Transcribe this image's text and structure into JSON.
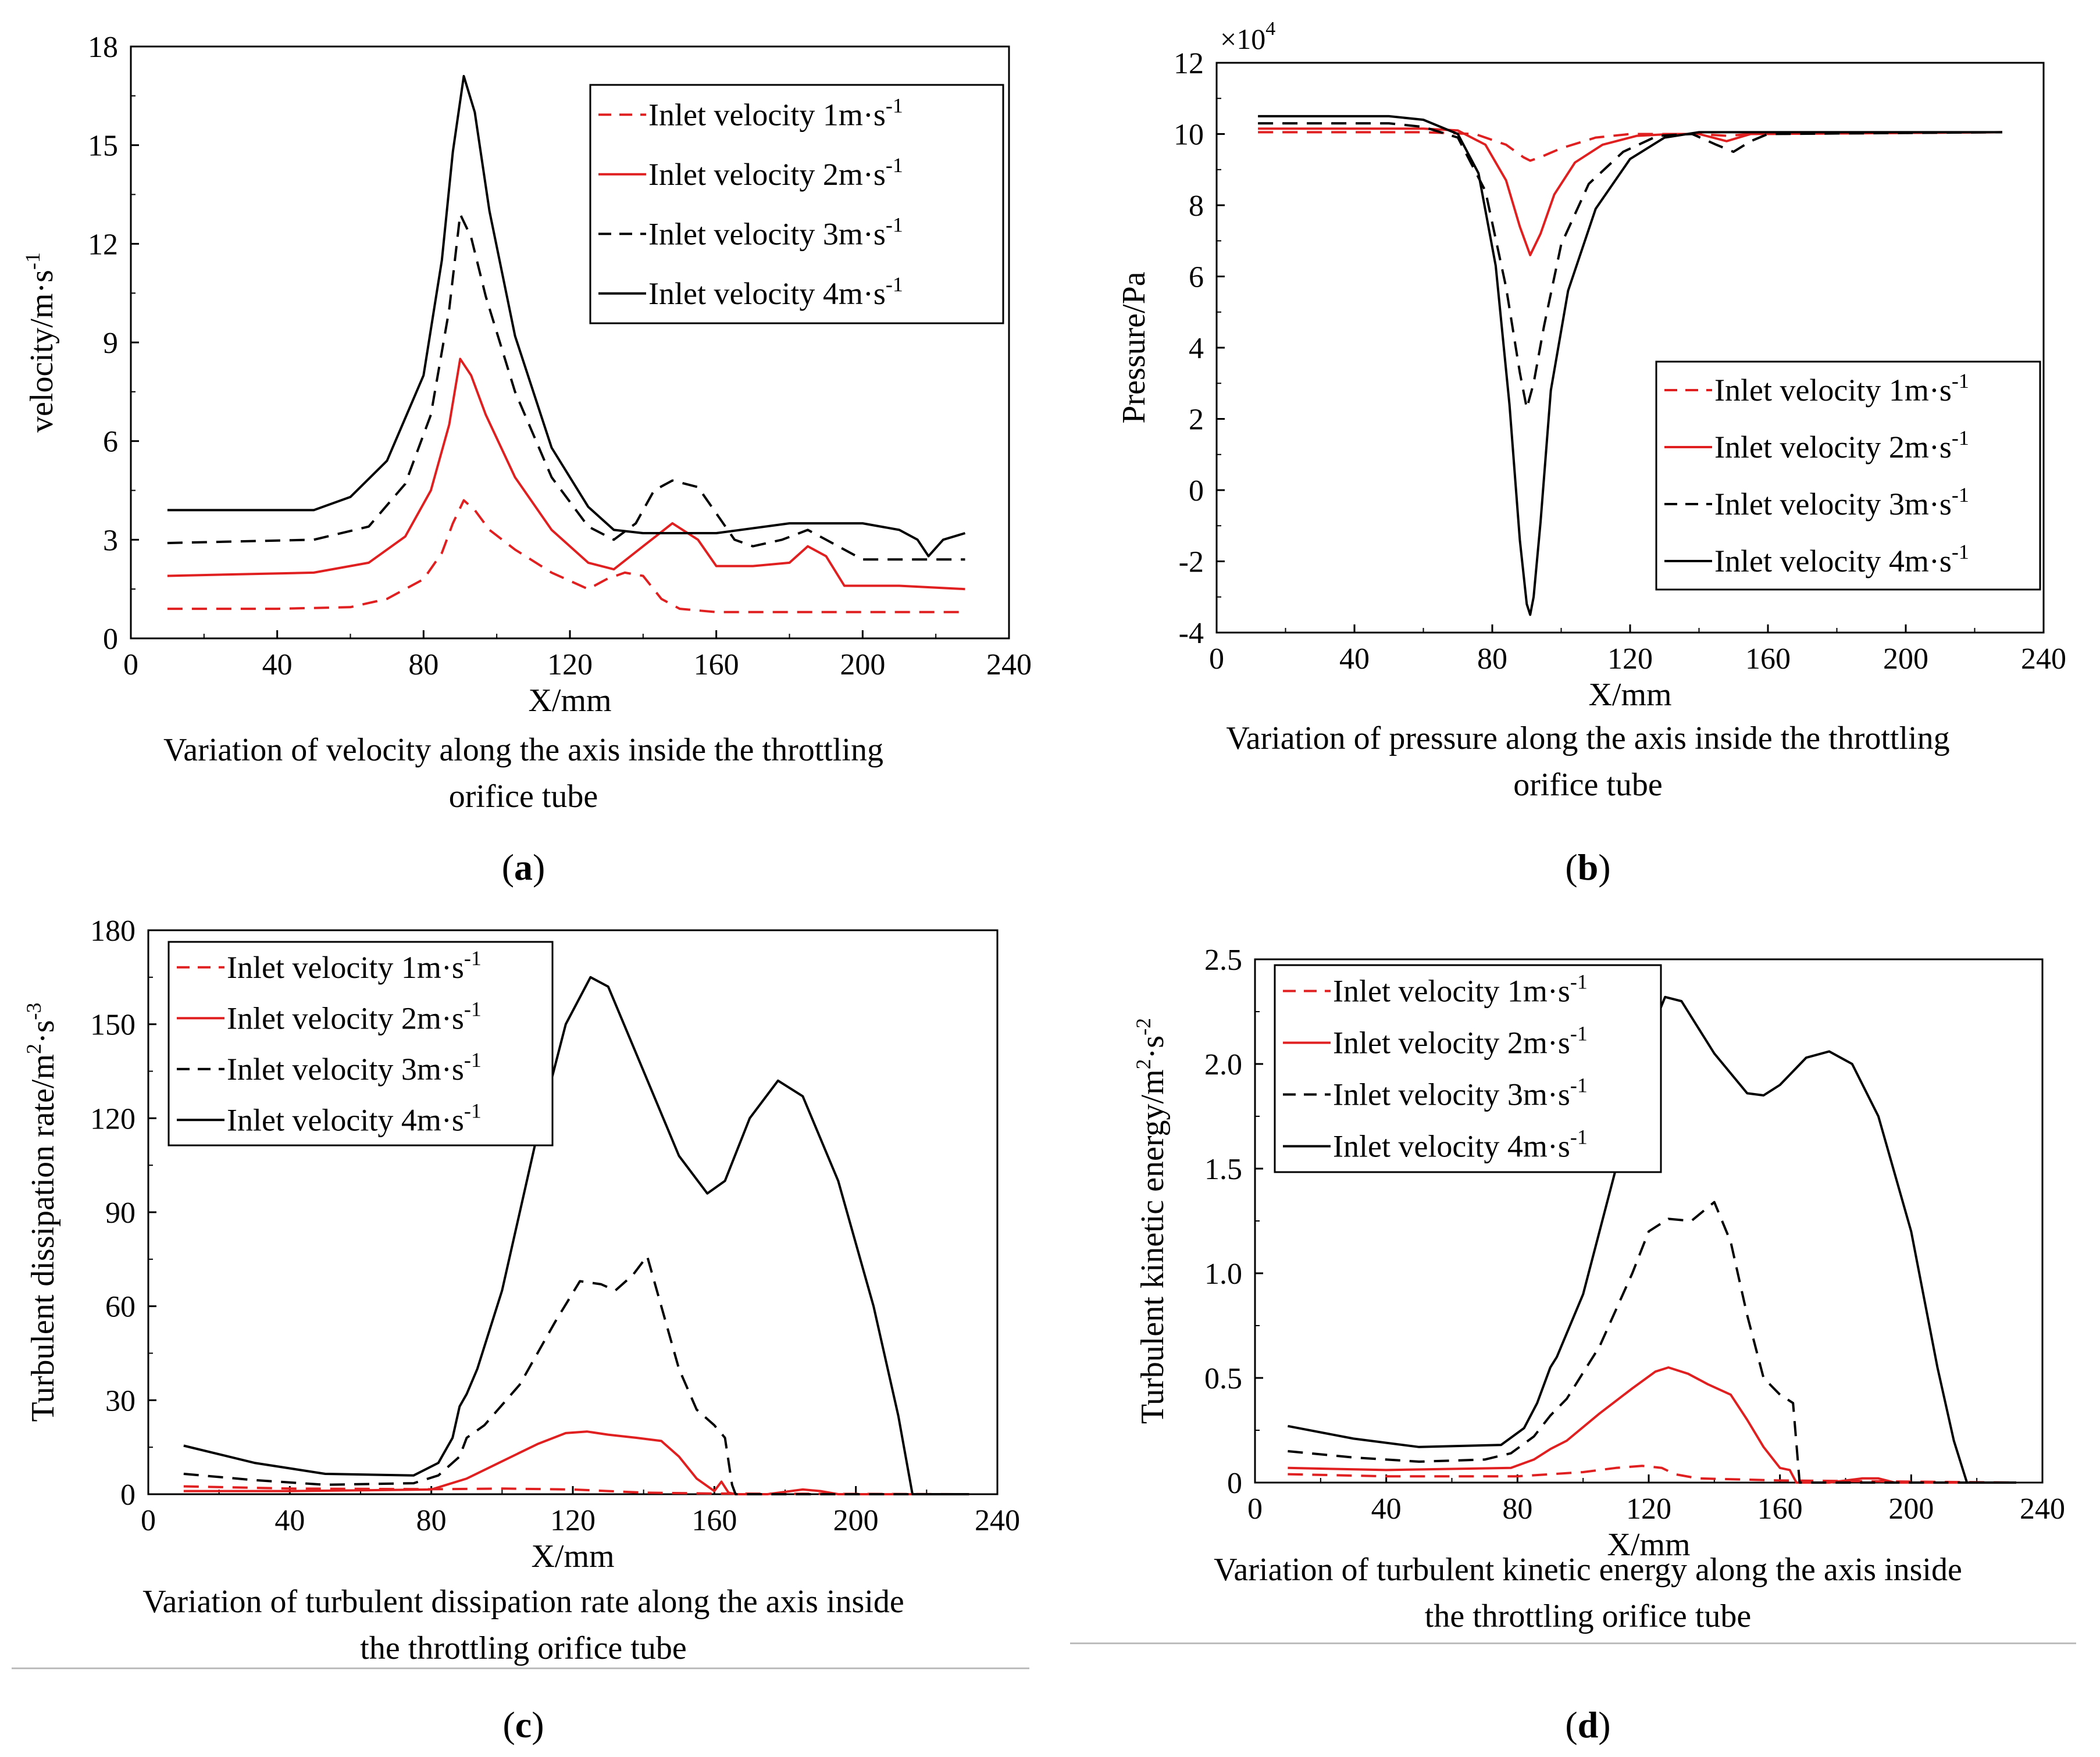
{
  "panels": [
    {
      "id": "a",
      "label": "a",
      "caption_line1": "Variation of velocity along the axis inside the throttling",
      "caption_line2": "orifice tube"
    },
    {
      "id": "b",
      "label": "b",
      "caption_line1": "Variation of pressure along the axis inside the throttling",
      "caption_line2": "orifice tube"
    },
    {
      "id": "c",
      "label": "c",
      "caption_line1": "Variation of turbulent dissipation rate along the axis inside",
      "caption_line2": "the throttling orifice tube"
    },
    {
      "id": "d",
      "label": "d",
      "caption_line1": "Variation of turbulent kinetic energy along the axis inside",
      "caption_line2": "the throttling orifice tube"
    }
  ],
  "chart_data": [
    {
      "id": "a",
      "type": "line",
      "title": "",
      "xlabel": "X/mm",
      "ylabel": "velocity/m·s",
      "ylabel_sup": "-1",
      "xlim": [
        0,
        240
      ],
      "ylim": [
        0,
        18
      ],
      "xticks": [
        0,
        40,
        80,
        120,
        160,
        200,
        240
      ],
      "yticks": [
        0,
        3,
        6,
        9,
        12,
        15,
        18
      ],
      "grid": false,
      "legend_position": "top-right",
      "series": [
        {
          "name": "Inlet velocity 1m·s",
          "sup": "-1",
          "color": "#e02020",
          "dash": "dashed",
          "x": [
            10,
            40,
            60,
            70,
            80,
            85,
            88,
            91,
            94,
            98,
            105,
            115,
            125,
            130,
            135,
            140,
            145,
            150,
            160,
            200,
            228
          ],
          "y": [
            0.9,
            0.9,
            0.95,
            1.2,
            1.8,
            2.6,
            3.5,
            4.2,
            3.9,
            3.3,
            2.7,
            2.0,
            1.5,
            1.8,
            2.0,
            1.9,
            1.2,
            0.9,
            0.8,
            0.8,
            0.8
          ]
        },
        {
          "name": "Inlet velocity 2m·s",
          "sup": "-1",
          "color": "#e02020",
          "dash": "solid",
          "x": [
            10,
            50,
            65,
            75,
            82,
            87,
            90,
            93,
            97,
            105,
            115,
            125,
            132,
            140,
            148,
            155,
            160,
            170,
            180,
            185,
            190,
            195,
            210,
            228
          ],
          "y": [
            1.9,
            2.0,
            2.3,
            3.1,
            4.5,
            6.5,
            8.5,
            8.0,
            6.8,
            4.9,
            3.3,
            2.3,
            2.1,
            2.8,
            3.5,
            3.0,
            2.2,
            2.2,
            2.3,
            2.8,
            2.5,
            1.6,
            1.6,
            1.5
          ]
        },
        {
          "name": "Inlet velocity 3m·s",
          "sup": "-1",
          "color": "#000000",
          "dash": "dashed",
          "x": [
            10,
            50,
            65,
            75,
            82,
            87,
            90,
            93,
            97,
            105,
            115,
            125,
            132,
            138,
            143,
            148,
            155,
            160,
            165,
            170,
            178,
            185,
            190,
            200,
            228
          ],
          "y": [
            2.9,
            3.0,
            3.4,
            4.7,
            6.8,
            10.0,
            12.9,
            12.2,
            10.4,
            7.5,
            4.9,
            3.4,
            3.0,
            3.5,
            4.5,
            4.8,
            4.6,
            3.8,
            3.0,
            2.8,
            3.0,
            3.3,
            3.0,
            2.4,
            2.4
          ]
        },
        {
          "name": "Inlet velocity 4m·s",
          "sup": "-1",
          "color": "#000000",
          "dash": "solid",
          "x": [
            10,
            50,
            60,
            70,
            80,
            85,
            88,
            91,
            94,
            98,
            105,
            115,
            125,
            132,
            140,
            160,
            180,
            200,
            210,
            215,
            218,
            222,
            228
          ],
          "y": [
            3.9,
            3.9,
            4.3,
            5.4,
            8.0,
            11.5,
            14.8,
            17.1,
            16.0,
            13.0,
            9.2,
            5.8,
            4.0,
            3.3,
            3.2,
            3.2,
            3.5,
            3.5,
            3.3,
            3.0,
            2.5,
            3.0,
            3.2
          ]
        }
      ]
    },
    {
      "id": "b",
      "type": "line",
      "title": "",
      "xlabel": "X/mm",
      "ylabel": "Pressure/Pa",
      "multiplier": "×10",
      "multiplier_sup": "4",
      "xlim": [
        0,
        240
      ],
      "ylim": [
        -4,
        12
      ],
      "xticks": [
        0,
        40,
        80,
        120,
        160,
        200,
        240
      ],
      "yticks": [
        -4,
        -2,
        0,
        2,
        4,
        6,
        8,
        10,
        12
      ],
      "grid": false,
      "legend_position": "center-right",
      "series": [
        {
          "name": "Inlet velocity 1m·s",
          "sup": "-1",
          "color": "#e02020",
          "dash": "dashed",
          "x": [
            12,
            60,
            75,
            84,
            89,
            91,
            94,
            100,
            110,
            120,
            140,
            148,
            155,
            228
          ],
          "y": [
            10.05,
            10.05,
            10.0,
            9.7,
            9.35,
            9.25,
            9.35,
            9.6,
            9.9,
            10.0,
            10.0,
            9.95,
            10.0,
            10.05
          ]
        },
        {
          "name": "Inlet velocity 2m·s",
          "sup": "-1",
          "color": "#e02020",
          "dash": "solid",
          "x": [
            12,
            60,
            70,
            78,
            84,
            88,
            91,
            94,
            98,
            104,
            112,
            122,
            132,
            140,
            148,
            155,
            228
          ],
          "y": [
            10.15,
            10.15,
            10.1,
            9.7,
            8.7,
            7.4,
            6.6,
            7.2,
            8.3,
            9.2,
            9.7,
            9.95,
            10.0,
            10.0,
            9.8,
            10.0,
            10.05
          ]
        },
        {
          "name": "Inlet velocity 3m·s",
          "sup": "-1",
          "color": "#000000",
          "dash": "dashed",
          "x": [
            12,
            50,
            60,
            70,
            78,
            84,
            88,
            90,
            92,
            95,
            100,
            108,
            118,
            128,
            138,
            145,
            150,
            155,
            160,
            228
          ],
          "y": [
            10.3,
            10.3,
            10.2,
            9.9,
            8.4,
            5.7,
            3.3,
            2.3,
            3.0,
            4.6,
            6.9,
            8.6,
            9.5,
            9.95,
            10.0,
            9.7,
            9.5,
            9.8,
            10.0,
            10.05
          ]
        },
        {
          "name": "Inlet velocity 4m·s",
          "sup": "-1",
          "color": "#000000",
          "dash": "solid",
          "x": [
            12,
            50,
            60,
            70,
            76,
            81,
            85,
            88,
            90,
            91,
            92,
            94,
            97,
            102,
            110,
            120,
            130,
            140,
            160,
            228
          ],
          "y": [
            10.5,
            10.5,
            10.4,
            10.0,
            8.9,
            6.3,
            2.4,
            -1.4,
            -3.2,
            -3.5,
            -3.0,
            -0.9,
            2.8,
            5.6,
            7.9,
            9.3,
            9.9,
            10.05,
            10.05,
            10.05
          ]
        }
      ]
    },
    {
      "id": "c",
      "type": "line",
      "title": "",
      "xlabel": "X/mm",
      "ylabel": "Turbulent dissipation rate/m",
      "ylabel_sup1": "2",
      "ylabel_mid": "·s",
      "ylabel_sup2": "-3",
      "xlim": [
        0,
        240
      ],
      "ylim": [
        0,
        180
      ],
      "xticks": [
        0,
        40,
        80,
        120,
        160,
        200,
        240
      ],
      "yticks": [
        0,
        30,
        60,
        90,
        120,
        150,
        180
      ],
      "grid": false,
      "legend_position": "top-left",
      "series": [
        {
          "name": "Inlet velocity 1m·s",
          "sup": "-1",
          "color": "#e02020",
          "dash": "dashed",
          "x": [
            10,
            40,
            80,
            100,
            120,
            130,
            140,
            160,
            232
          ],
          "y": [
            2.5,
            1.8,
            1.6,
            1.8,
            1.5,
            1.0,
            0.5,
            0.2,
            0.0
          ]
        },
        {
          "name": "Inlet velocity 2m·s",
          "sup": "-1",
          "color": "#e02020",
          "dash": "solid",
          "x": [
            10,
            40,
            80,
            90,
            100,
            110,
            118,
            124,
            130,
            138,
            145,
            150,
            155,
            160,
            162,
            164,
            166,
            175,
            185,
            190,
            195,
            232
          ],
          "y": [
            1.0,
            1.0,
            1.5,
            5.0,
            10.5,
            16.0,
            19.5,
            20.0,
            19.0,
            18.0,
            17.0,
            12.0,
            5.0,
            1.0,
            4.0,
            0.5,
            0.0,
            0.0,
            1.5,
            1.0,
            0.0,
            0.0
          ]
        },
        {
          "name": "Inlet velocity 3m·s",
          "sup": "-1",
          "color": "#000000",
          "dash": "dashed",
          "x": [
            10,
            30,
            50,
            75,
            82,
            88,
            90,
            95,
            105,
            115,
            122,
            128,
            132,
            137,
            141,
            145,
            150,
            155,
            160,
            163,
            165,
            166,
            175,
            232
          ],
          "y": [
            6.5,
            4.5,
            3.0,
            3.5,
            6.0,
            12.0,
            18.0,
            22.0,
            35.0,
            55.0,
            68.0,
            67.0,
            65.0,
            70.0,
            76.0,
            60.0,
            40.0,
            27.0,
            22.0,
            18.0,
            3.0,
            0.0,
            0.0,
            0.0
          ]
        },
        {
          "name": "Inlet velocity 4m·s",
          "sup": "-1",
          "color": "#000000",
          "dash": "solid",
          "x": [
            10,
            30,
            50,
            75,
            82,
            86,
            88,
            90,
            93,
            100,
            110,
            118,
            125,
            130,
            140,
            150,
            158,
            163,
            170,
            178,
            185,
            195,
            205,
            212,
            216,
            232
          ],
          "y": [
            15.5,
            10.0,
            6.5,
            6.0,
            10.0,
            18.0,
            28.0,
            32.0,
            40.0,
            65.0,
            115.0,
            150.0,
            165.0,
            162.0,
            135.0,
            108.0,
            96.0,
            100.0,
            120.0,
            132.0,
            127.0,
            100.0,
            60.0,
            25.0,
            0.0,
            0.0
          ]
        }
      ]
    },
    {
      "id": "d",
      "type": "line",
      "title": "",
      "xlabel": "X/mm",
      "ylabel": "Turbulent kinetic energy/m",
      "ylabel_sup1": "2",
      "ylabel_mid": "·s",
      "ylabel_sup2": "-2",
      "xlim": [
        0,
        240
      ],
      "ylim": [
        0,
        2.5
      ],
      "xticks": [
        0,
        40,
        80,
        120,
        160,
        200,
        240
      ],
      "yticks": [
        0,
        0.5,
        1.0,
        1.5,
        2.0,
        2.5
      ],
      "ytick_labels": [
        "0",
        "0.5",
        "1.0",
        "1.5",
        "2.0",
        "2.5"
      ],
      "grid": false,
      "legend_position": "top-left",
      "series": [
        {
          "name": "Inlet velocity 1m·s",
          "sup": "-1",
          "color": "#e02020",
          "dash": "dashed",
          "x": [
            10,
            40,
            80,
            90,
            100,
            110,
            118,
            124,
            128,
            135,
            160,
            232
          ],
          "y": [
            0.04,
            0.03,
            0.03,
            0.04,
            0.05,
            0.07,
            0.08,
            0.07,
            0.04,
            0.02,
            0.01,
            0.0
          ]
        },
        {
          "name": "Inlet velocity 2m·s",
          "sup": "-1",
          "color": "#e02020",
          "dash": "solid",
          "x": [
            10,
            40,
            78,
            85,
            90,
            95,
            105,
            115,
            122,
            126,
            132,
            138,
            145,
            150,
            155,
            160,
            163,
            165,
            175,
            185,
            190,
            195,
            232
          ],
          "y": [
            0.07,
            0.06,
            0.07,
            0.11,
            0.16,
            0.2,
            0.33,
            0.45,
            0.53,
            0.55,
            0.52,
            0.47,
            0.42,
            0.3,
            0.17,
            0.07,
            0.06,
            0.0,
            0.0,
            0.02,
            0.02,
            0.0,
            0.0
          ]
        },
        {
          "name": "Inlet velocity 3m·s",
          "sup": "-1",
          "color": "#000000",
          "dash": "dashed",
          "x": [
            10,
            30,
            50,
            70,
            78,
            85,
            90,
            95,
            105,
            115,
            120,
            126,
            133,
            140,
            145,
            150,
            155,
            160,
            164,
            166,
            175,
            232
          ],
          "y": [
            0.15,
            0.12,
            0.1,
            0.11,
            0.14,
            0.22,
            0.32,
            0.4,
            0.65,
            1.0,
            1.2,
            1.26,
            1.25,
            1.34,
            1.15,
            0.8,
            0.5,
            0.42,
            0.38,
            0.0,
            0.0,
            0.0
          ]
        },
        {
          "name": "Inlet velocity 4m·s",
          "sup": "-1",
          "color": "#000000",
          "dash": "solid",
          "x": [
            10,
            30,
            50,
            75,
            82,
            86,
            90,
            92,
            100,
            110,
            118,
            125,
            130,
            140,
            150,
            155,
            160,
            168,
            175,
            182,
            190,
            200,
            208,
            213,
            217,
            232
          ],
          "y": [
            0.27,
            0.21,
            0.17,
            0.18,
            0.26,
            0.38,
            0.55,
            0.6,
            0.9,
            1.5,
            2.05,
            2.32,
            2.3,
            2.05,
            1.86,
            1.85,
            1.9,
            2.03,
            2.06,
            2.0,
            1.75,
            1.2,
            0.55,
            0.2,
            0.0,
            0.0
          ]
        }
      ]
    }
  ]
}
